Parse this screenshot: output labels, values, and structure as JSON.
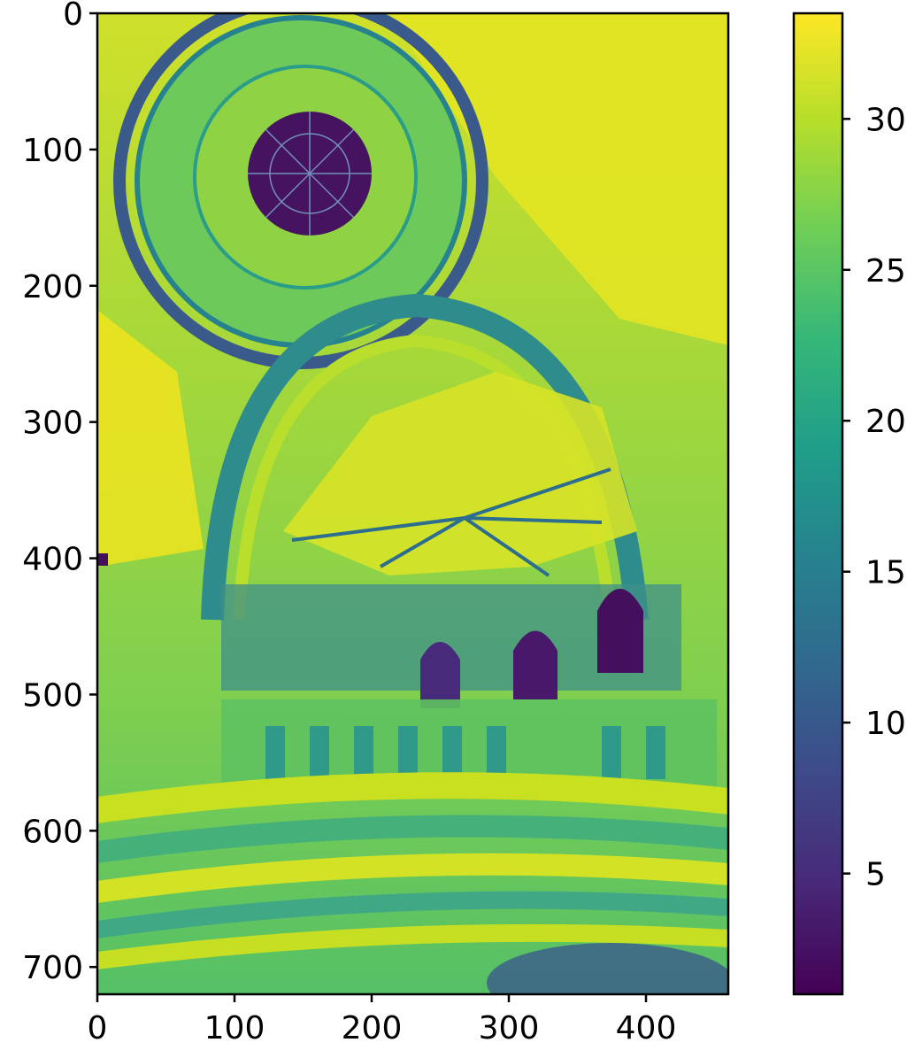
{
  "chart_data": {
    "type": "heatmap",
    "title": "",
    "xlabel": "",
    "ylabel": "",
    "image_width": 460,
    "image_height": 720,
    "xlim": [
      0,
      460
    ],
    "ylim": [
      720,
      0
    ],
    "x_ticks": [
      0,
      100,
      200,
      300,
      400
    ],
    "x_tick_labels": [
      "0",
      "100",
      "200",
      "300",
      "400"
    ],
    "y_ticks": [
      0,
      100,
      200,
      300,
      400,
      500,
      600,
      700
    ],
    "y_tick_labels": [
      "0",
      "100",
      "200",
      "300",
      "400",
      "500",
      "600",
      "700"
    ],
    "colormap": "viridis",
    "colormap_stops": [
      "#440154",
      "#482878",
      "#3e4989",
      "#31688e",
      "#26828e",
      "#1f9e89",
      "#35b779",
      "#6ece58",
      "#b5de2b",
      "#fde725"
    ],
    "colorbar": {
      "range": [
        1,
        33.5
      ],
      "ticks": [
        5,
        10,
        15,
        20,
        25,
        30
      ],
      "tick_labels": [
        "5",
        "10",
        "15",
        "20",
        "25",
        "30"
      ]
    },
    "grid": false,
    "image_subject": "church interior with domed ceiling, arches, stained-glass windows and altar steps (grayscale intensity rendered with viridis colormap)"
  }
}
